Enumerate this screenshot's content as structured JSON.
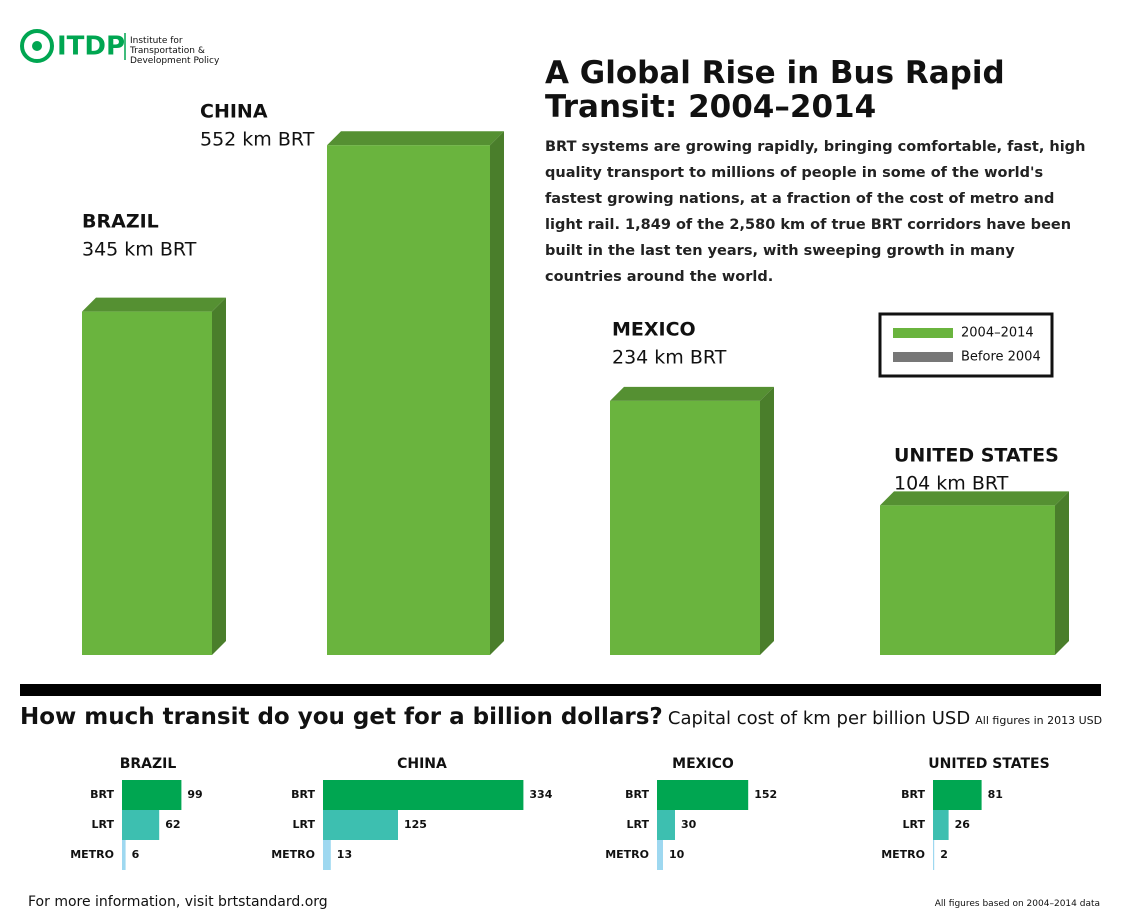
{
  "logo": {
    "name": "ITDP",
    "tagline": "Institute for Transportation & Development Policy"
  },
  "header": {
    "title": "A Global Rise in Bus Rapid Transit: 2004–2014",
    "description": "BRT systems are growing rapidly, bringing comfortable, fast, high quality transport to millions of people in some of the world's fastest growing nations, at a fraction of the cost of metro and light rail. 1,849 of the 2,580 km of true BRT corridors have been built in the last ten years, with sweeping growth in many countries around the world."
  },
  "chart_data": [
    {
      "type": "column",
      "categories": [
        "BRAZIL",
        "CHINA",
        "MEXICO",
        "UNITED STATES"
      ],
      "values": [
        345,
        552,
        234,
        104
      ],
      "value_labels": [
        "345 km BRT",
        "552 km BRT",
        "234 km BRT",
        "104 km BRT"
      ],
      "color": "#6ab43e",
      "legend": [
        {
          "name": "2004–2014",
          "color": "#6ab43e"
        },
        {
          "name": "Before 2004",
          "color": "#777777"
        }
      ],
      "legend_position": "right"
    },
    {
      "type": "hbar",
      "title": "BRAZIL",
      "categories": [
        "BRT",
        "LRT",
        "METRO"
      ],
      "values": [
        99,
        62,
        6
      ],
      "colors": [
        "#00a651",
        "#3dbfb0",
        "#9ed8f0"
      ]
    },
    {
      "type": "hbar",
      "title": "CHINA",
      "categories": [
        "BRT",
        "LRT",
        "METRO"
      ],
      "values": [
        334,
        125,
        13
      ],
      "colors": [
        "#00a651",
        "#3dbfb0",
        "#9ed8f0"
      ]
    },
    {
      "type": "hbar",
      "title": "MEXICO",
      "categories": [
        "BRT",
        "LRT",
        "METRO"
      ],
      "values": [
        152,
        30,
        10
      ],
      "colors": [
        "#00a651",
        "#3dbfb0",
        "#9ed8f0"
      ]
    },
    {
      "type": "hbar",
      "title": "UNITED STATES",
      "categories": [
        "BRT",
        "LRT",
        "METRO"
      ],
      "values": [
        81,
        26,
        2
      ],
      "colors": [
        "#00a651",
        "#3dbfb0",
        "#9ed8f0"
      ]
    }
  ],
  "section": {
    "title": "How much transit do you get for a billion dollars?",
    "subtitle": "Capital cost of km per billion USD",
    "note": "All figures in 2013 USD"
  },
  "footer": {
    "left": "For more information, visit brtstandard.org",
    "right": "All figures based on 2004–2014 data"
  }
}
